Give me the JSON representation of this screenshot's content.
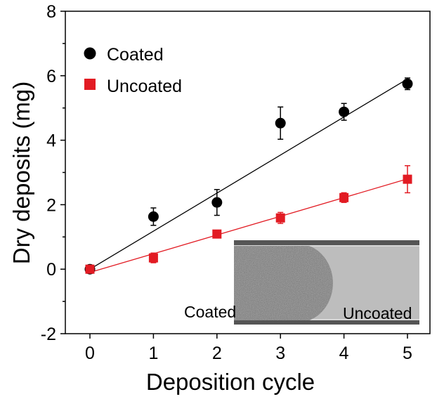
{
  "chart_data": {
    "type": "scatter",
    "xlabel": "Deposition cycle",
    "ylabel": "Dry deposits (mg)",
    "xlim": [
      -0.5,
      5.5
    ],
    "ylim": [
      -2,
      8
    ],
    "xticks": [
      "0",
      "1",
      "2",
      "3",
      "4",
      "5"
    ],
    "yticks": [
      "-2",
      "0",
      "2",
      "4",
      "6",
      "8"
    ],
    "grid": false,
    "legend_position": "top-left",
    "series": [
      {
        "name": "Coated",
        "color": "#000000",
        "marker": "circle",
        "x": [
          0,
          1,
          2,
          3,
          4,
          5
        ],
        "y": [
          0.0,
          1.63,
          2.07,
          4.53,
          4.88,
          5.75
        ],
        "error": [
          0.05,
          0.27,
          0.4,
          0.5,
          0.26,
          0.18
        ],
        "fit": {
          "intercept": 0.0,
          "slope": 1.18
        }
      },
      {
        "name": "Uncoated",
        "color": "#e21b23",
        "marker": "square",
        "x": [
          0,
          1,
          2,
          3,
          4,
          5
        ],
        "y": [
          0.0,
          0.35,
          1.09,
          1.59,
          2.22,
          2.79
        ],
        "error": [
          0.05,
          0.15,
          0.05,
          0.17,
          0.15,
          0.42
        ],
        "fit": {
          "intercept": -0.1,
          "slope": 0.58
        }
      }
    ],
    "inset": {
      "left_label": "Coated",
      "right_label": "Uncoated"
    }
  }
}
